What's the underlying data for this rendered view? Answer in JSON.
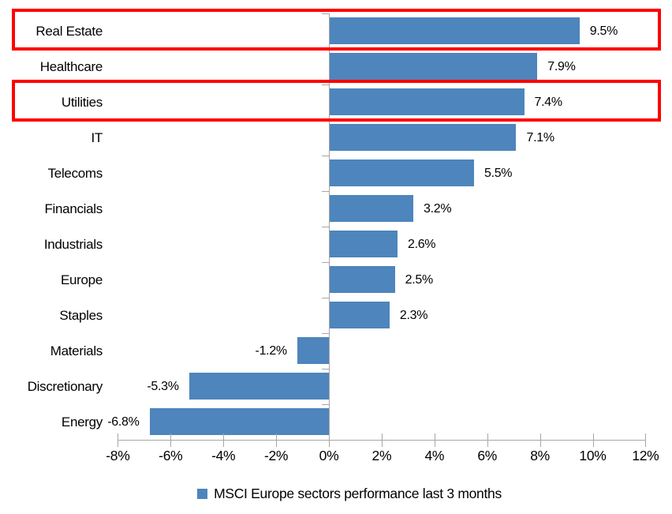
{
  "chart_data": {
    "type": "bar",
    "orientation": "horizontal",
    "categories": [
      "Real Estate",
      "Healthcare",
      "Utilities",
      "IT",
      "Telecoms",
      "Financials",
      "Industrials",
      "Europe",
      "Staples",
      "Materials",
      "Discretionary",
      "Energy"
    ],
    "values": [
      9.5,
      7.9,
      7.4,
      7.1,
      5.5,
      3.2,
      2.6,
      2.5,
      2.3,
      -1.2,
      -5.3,
      -6.8
    ],
    "data_labels": [
      "9.5%",
      "7.9%",
      "7.4%",
      "7.1%",
      "5.5%",
      "3.2%",
      "2.6%",
      "2.5%",
      "2.3%",
      "-1.2%",
      "-5.3%",
      "-6.8%"
    ],
    "xlim": [
      -8,
      12
    ],
    "x_ticks": [
      -8,
      -6,
      -4,
      -2,
      0,
      2,
      4,
      6,
      8,
      10,
      12
    ],
    "x_tick_labels": [
      "-8%",
      "-6%",
      "-4%",
      "-2%",
      "0%",
      "2%",
      "4%",
      "6%",
      "8%",
      "10%",
      "12%"
    ],
    "grid": false,
    "legend": "MSCI Europe sectors performance last 3 months",
    "legend_position": "bottom",
    "bar_color": "#4D85BC",
    "axis_color": "#A6A6A6",
    "text_color": "#000000",
    "highlighted_categories": [
      "Real Estate",
      "Utilities"
    ],
    "highlight_box_color": "#FF0000"
  }
}
